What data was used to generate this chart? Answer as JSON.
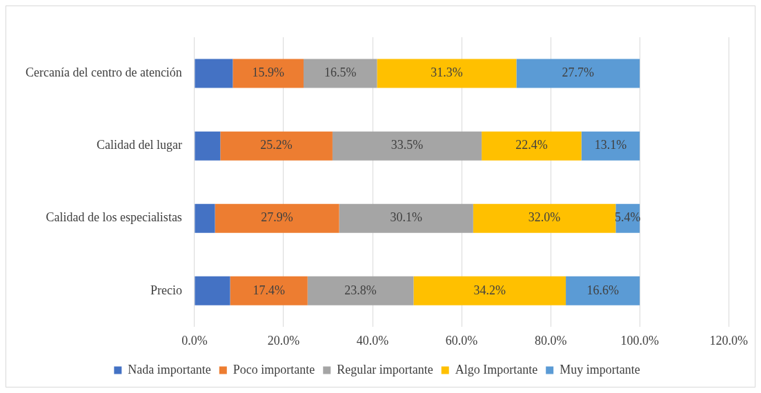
{
  "chart_data": {
    "type": "bar",
    "orientation": "horizontal",
    "stacked": true,
    "categories": [
      "Cercanía del centro de atención",
      "Calidad del lugar",
      "Calidad de los especialistas",
      "Precio"
    ],
    "series": [
      {
        "name": "Nada importante",
        "color": "#4472c4",
        "values": [
          8.6,
          5.8,
          4.6,
          8.0
        ],
        "value_labels": [
          null,
          null,
          null,
          null
        ]
      },
      {
        "name": "Poco importante",
        "color": "#ed7d31",
        "values": [
          15.9,
          25.2,
          27.9,
          17.4
        ],
        "value_labels": [
          "15.9%",
          "25.2%",
          "27.9%",
          "17.4%"
        ]
      },
      {
        "name": "Regular importante",
        "color": "#a5a5a5",
        "values": [
          16.5,
          33.5,
          30.1,
          23.8
        ],
        "value_labels": [
          "16.5%",
          "33.5%",
          "30.1%",
          "23.8%"
        ]
      },
      {
        "name": "Algo Importante",
        "color": "#ffc000",
        "values": [
          31.3,
          22.4,
          32.0,
          34.2
        ],
        "value_labels": [
          "31.3%",
          "22.4%",
          "32.0%",
          "34.2%"
        ]
      },
      {
        "name": "Muy importante",
        "color": "#5b9bd5",
        "values": [
          27.7,
          13.1,
          5.4,
          16.6
        ],
        "value_labels": [
          "27.7%",
          "13.1%",
          "5.4%",
          "16.6%"
        ]
      }
    ],
    "xlim": [
      0,
      120
    ],
    "xticks": [
      {
        "value": 0,
        "label": "0.0%"
      },
      {
        "value": 20,
        "label": "20.0%"
      },
      {
        "value": 40,
        "label": "40.0%"
      },
      {
        "value": 60,
        "label": "60.0%"
      },
      {
        "value": 80,
        "label": "80.0%"
      },
      {
        "value": 100,
        "label": "100.0%"
      },
      {
        "value": 120,
        "label": "120.0%"
      }
    ],
    "grid": "x",
    "legend": "bottom"
  }
}
